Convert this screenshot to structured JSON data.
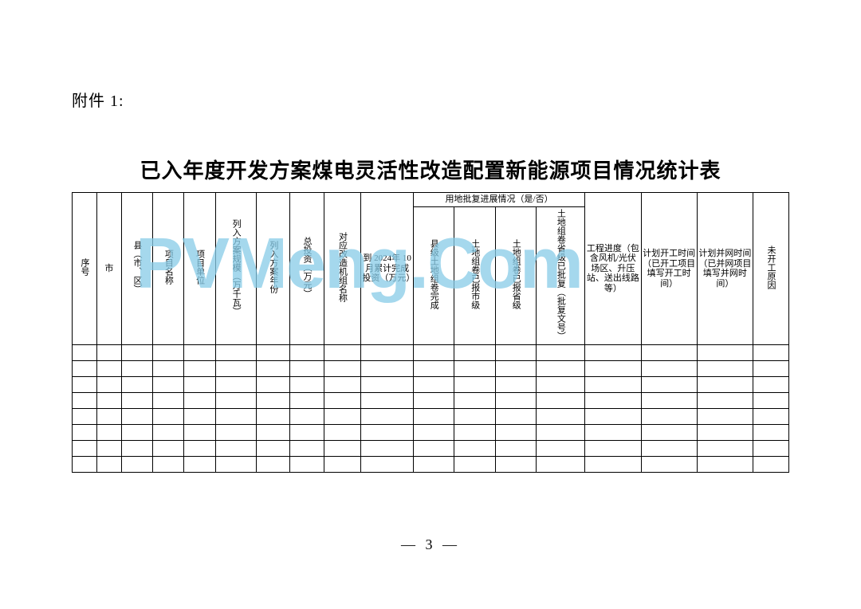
{
  "attachment_label": "附件 1:",
  "title": "已入年度开发方案煤电灵活性改造配置新能源项目情况统计表",
  "page_number": "— 3 —",
  "watermark": "PVMeng.Com",
  "columns": {
    "c1": "序号",
    "c2": "市",
    "c3": "县（市、区）",
    "c4": "项目名称",
    "c5": "项目单位",
    "c6": "列入方案规模（万千瓦）",
    "c7": "列入方案年份",
    "c8": "总投资（万元）",
    "c9": "对应改造机组名称",
    "c10": "到 2024年 10 月累计完成投资（万元）",
    "group_land": "用地批复进展情况（是/否）",
    "c11": "县级土地组卷完成",
    "c12": "土地组卷已报市级",
    "c13": "土地组卷已报省级",
    "c14": "土地组卷省级已批复（批复文号）",
    "c15": "工程进度（包含风机/光伏场区、升压站、送出线路等）",
    "c16": "计划开工时间（已开工项目填写开工时间）",
    "c17": "计划并网时间（已并网项目填写并网时间）",
    "c18": "未开工原因"
  },
  "empty_rows": 8,
  "col_widths_pct": [
    3.3,
    3.3,
    4.2,
    4.2,
    4.2,
    5.5,
    4.5,
    4.5,
    5.0,
    7.0,
    5.5,
    5.5,
    5.5,
    6.5,
    7.5,
    7.5,
    7.5,
    4.8
  ],
  "colors": {
    "text": "#000000",
    "bg": "#ffffff",
    "border": "#000000",
    "watermark": "#87cce8"
  },
  "fontsize": {
    "attachment": 20,
    "title": 26,
    "cell": 11,
    "pagenum": 18,
    "watermark": 90
  }
}
